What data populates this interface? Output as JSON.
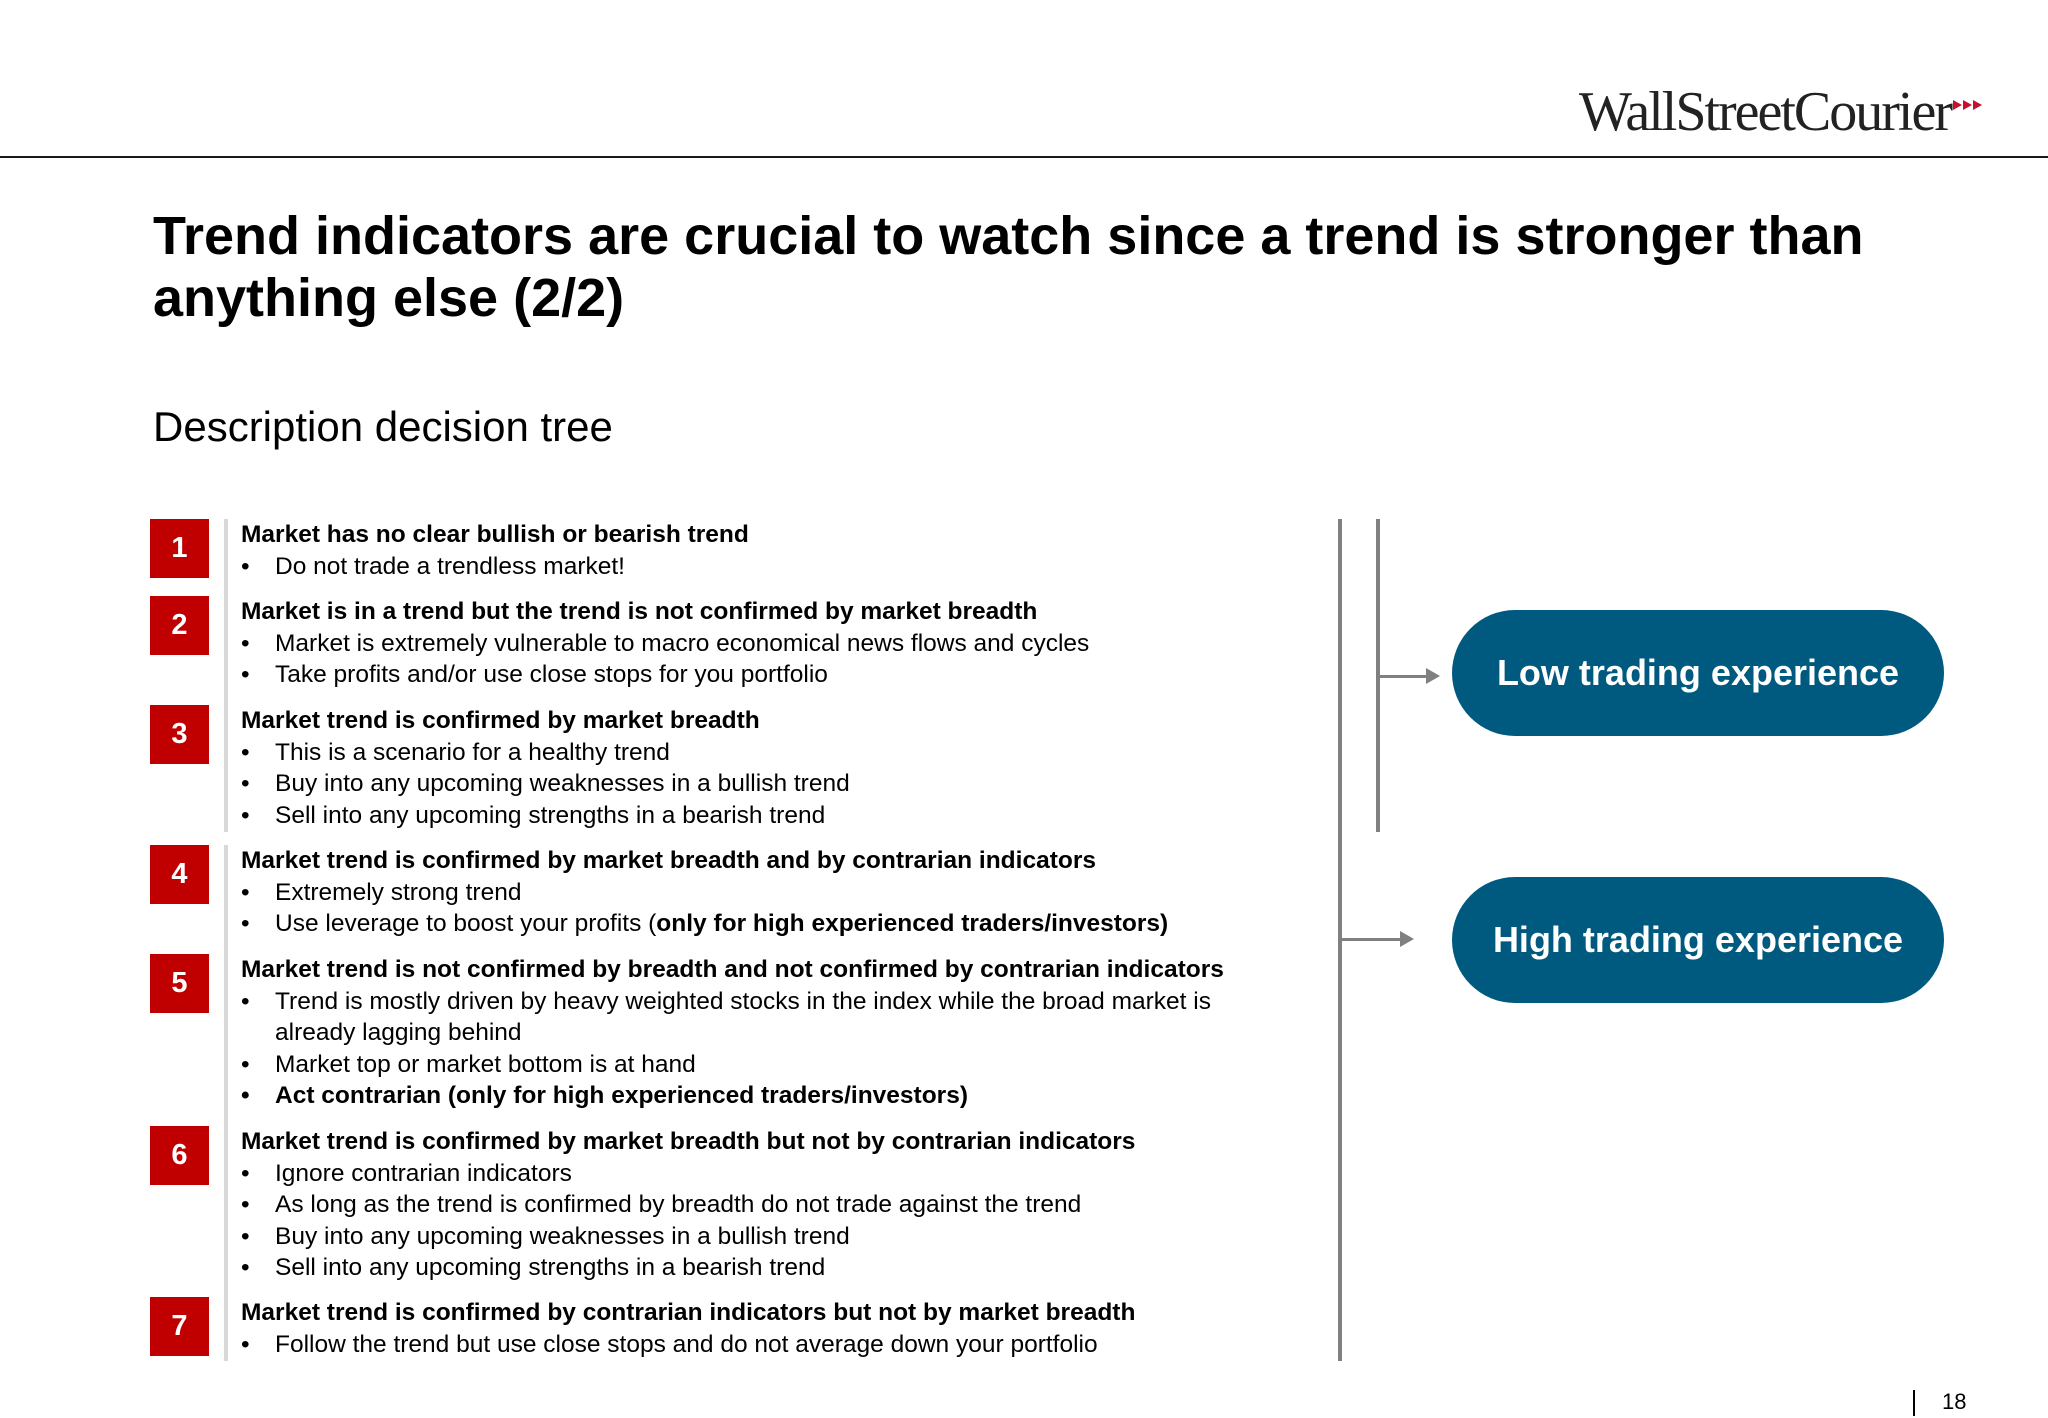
{
  "header": {
    "logo_text": "WallStreetCourier"
  },
  "title": "Trend indicators are crucial to watch since a trend is stronger than anything else (2/2)",
  "subtitle": "Description decision tree",
  "items": [
    {
      "number": "1",
      "heading": "Market has no clear bullish or bearish trend",
      "bullets": [
        "Do not trade a trendless market!"
      ]
    },
    {
      "number": "2",
      "heading": "Market is in a trend but the trend is not confirmed by market breadth",
      "bullets": [
        "Market is extremely vulnerable to macro economical news flows and cycles",
        "Take profits and/or use close stops for you portfolio"
      ]
    },
    {
      "number": "3",
      "heading": "Market trend is confirmed by market breadth",
      "bullets": [
        "This is a scenario for a healthy trend",
        "Buy into any upcoming weaknesses in a bullish trend",
        "Sell into any upcoming strengths in a bearish trend"
      ]
    },
    {
      "number": "4",
      "heading": "Market trend is confirmed by market breadth and by contrarian indicators",
      "bullets": [
        "Extremely strong trend",
        "Use leverage to boost your profits ("
      ],
      "bullet_bold_suffix": "only for high experienced traders/investors)"
    },
    {
      "number": "5",
      "heading": "Market trend is not confirmed by breadth and not confirmed by contrarian indicators",
      "bullets": [
        "Trend is mostly driven by heavy weighted stocks in the index while the broad market is already lagging behind",
        "Market top or market bottom is at hand",
        "Act contrarian (only for high experienced traders/investors)"
      ]
    },
    {
      "number": "6",
      "heading": "Market trend is confirmed by market breadth but not by contrarian indicators",
      "bullets": [
        "Ignore contrarian indicators",
        "As long as the trend is confirmed by breadth do not trade against the trend",
        "Buy into any upcoming weaknesses in a bullish trend",
        "Sell into any upcoming strengths in a bearish trend"
      ]
    },
    {
      "number": "7",
      "heading": "Market trend is confirmed by contrarian indicators but not by market breadth",
      "bullets": [
        "Follow the trend but use close stops and do not average down your portfolio"
      ]
    }
  ],
  "outcomes": {
    "low": "Low trading experience",
    "high": "High trading experience"
  },
  "page_number": "18"
}
